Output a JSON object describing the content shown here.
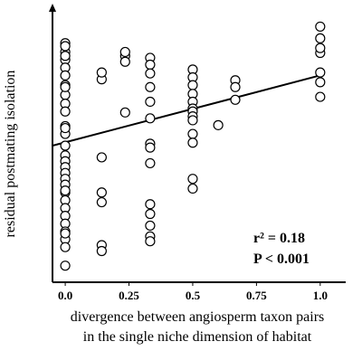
{
  "chart_data": {
    "type": "scatter",
    "xlabel": "divergence between angiosperm taxon pairs\nin the single niche dimension of habitat",
    "ylabel": "residual postmating isolation",
    "x_ticks": [
      "0.0",
      "0.25",
      "0.5",
      "0.75",
      "1.0"
    ],
    "xlim": [
      -0.05,
      1.1
    ],
    "ylim": [
      -0.14,
      0.14
    ],
    "regression": {
      "x": [
        -0.05,
        1.0
      ],
      "y": [
        0.0,
        0.072
      ]
    },
    "annotations": [
      "r² = 0.18",
      "P < 0.001"
    ],
    "series": [
      {
        "x": [
          0,
          0,
          0,
          0,
          0,
          0,
          0,
          0,
          0,
          0,
          0,
          0,
          0,
          0,
          0,
          0,
          0,
          0,
          0,
          0,
          0,
          0,
          0,
          0,
          0,
          0,
          0,
          0,
          0,
          0,
          0,
          0,
          0,
          0.143,
          0.143,
          0.143,
          0.143,
          0.143,
          0.143,
          0.143,
          0.235,
          0.235,
          0.235,
          0.235,
          0.333,
          0.333,
          0.333,
          0.333,
          0.333,
          0.333,
          0.333,
          0.333,
          0.333,
          0.333,
          0.333,
          0.333,
          0.333,
          0.333,
          0.5,
          0.5,
          0.5,
          0.5,
          0.5,
          0.5,
          0.5,
          0.5,
          0.5,
          0.5,
          0.5,
          0.5,
          0.5,
          0.6,
          0.667,
          0.667,
          0.667,
          1,
          1,
          1,
          1,
          1,
          1,
          1
        ],
        "y": [
          0.105,
          0.096,
          0.088,
          0.08,
          0.072,
          0.062,
          0.052,
          0.043,
          0.035,
          0.0,
          -0.01,
          -0.016,
          -0.022,
          -0.028,
          -0.034,
          -0.04,
          -0.048,
          -0.056,
          -0.064,
          -0.072,
          -0.08,
          -0.088,
          -0.096,
          -0.104,
          -0.123,
          0.012,
          0.02,
          0.06,
          -0.09,
          0.018,
          -0.046,
          0.092,
          0.102,
          0.068,
          0.075,
          -0.012,
          -0.048,
          -0.058,
          -0.102,
          -0.108,
          0.092,
          0.096,
          0.086,
          0.034,
          0.09,
          0.083,
          0.074,
          0.06,
          0.045,
          0.028,
          0.002,
          -0.002,
          -0.018,
          -0.06,
          -0.07,
          -0.082,
          -0.093,
          -0.098,
          0.078,
          0.07,
          0.062,
          0.053,
          0.045,
          0.038,
          0.035,
          0.03,
          0.026,
          0.012,
          -0.034,
          -0.044,
          0.003,
          0.021,
          0.067,
          0.06,
          0.047,
          0.122,
          0.11,
          0.095,
          0.1,
          0.075,
          0.065,
          0.05
        ]
      }
    ]
  }
}
